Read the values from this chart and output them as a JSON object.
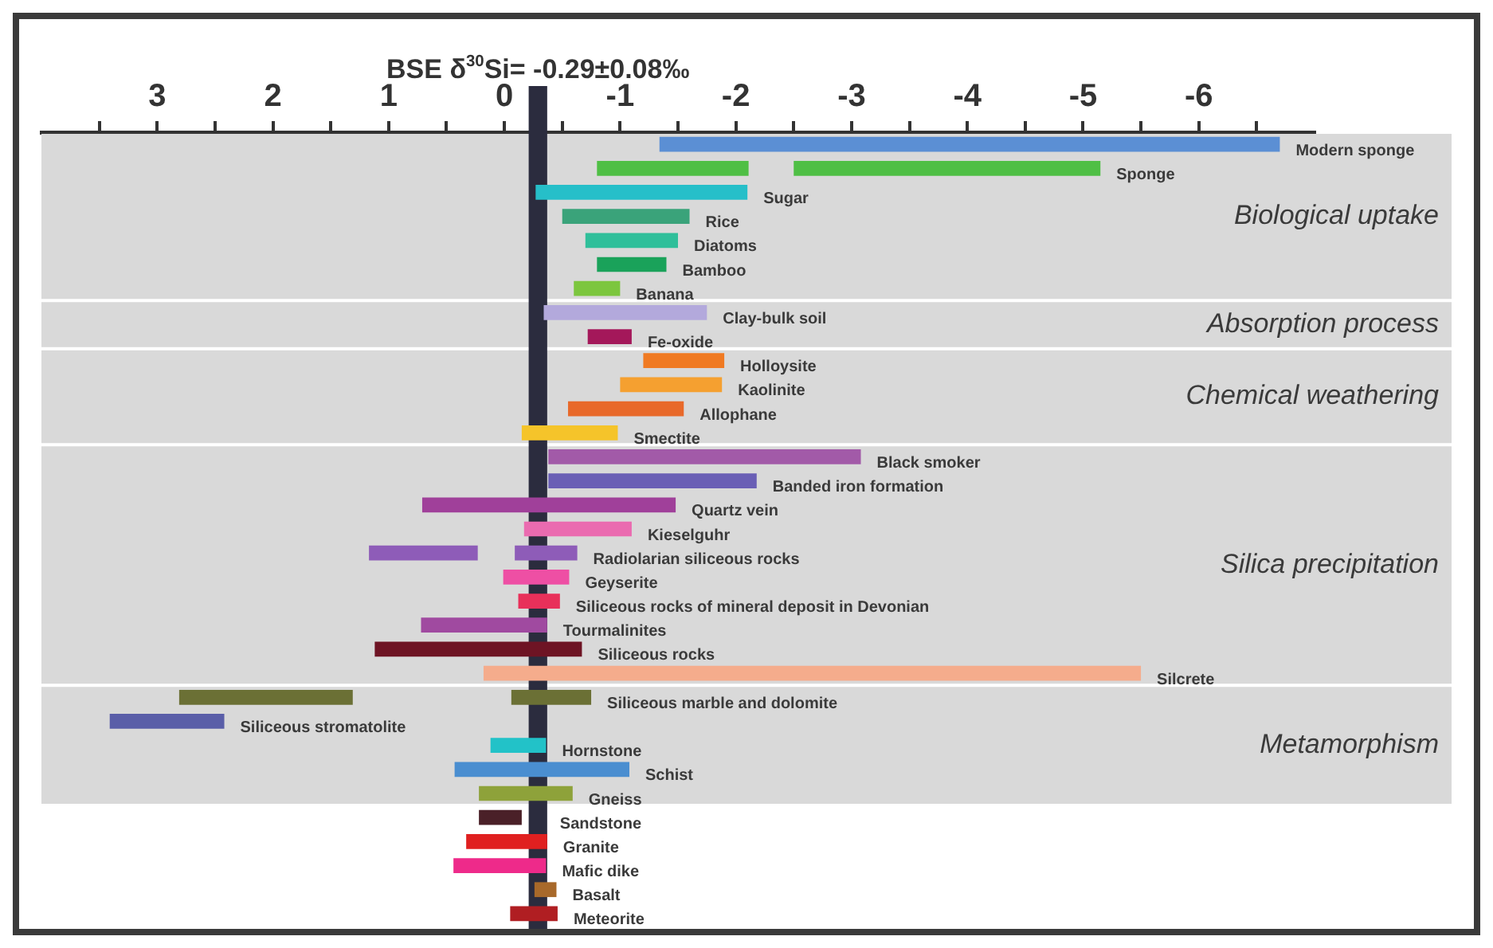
{
  "chart_data": {
    "type": "bar",
    "orientation": "horizontal",
    "tick_labels": "x",
    "grid": false,
    "legend": false,
    "categories": [
      "Modern sponge",
      "Sponge",
      "Sugar",
      "Rice",
      "Diatoms",
      "Bamboo",
      "Banana",
      "Clay-bulk soil",
      "Fe-oxide",
      "Holloysite",
      "Kaolinite",
      "Allophane",
      "Smectite",
      "Black smoker",
      "Banded iron formation",
      "Quartz vein",
      "Kieselguhr",
      "Radiolarian siliceous rocks",
      "Geyserite",
      "Siliceous rocks of mineral deposit in Devonian",
      "Tourmalinites",
      "Siliceous rocks",
      "Silcrete",
      "Siliceous marble and dolomite",
      "Siliceous stromatolite",
      "Hornstone",
      "Schist",
      "Gneiss",
      "Sandstone",
      "Granite",
      "Mafic dike",
      "Basalt",
      "Meteorite"
    ],
    "series": [
      {
        "base": [
          -6.7,
          -2.11,
          -2.1,
          -1.6,
          -1.5,
          -1.4,
          -1.0,
          -1.75,
          -1.1,
          -1.9,
          -1.88,
          -1.55,
          -0.98,
          -3.08,
          -2.18,
          -1.48,
          -1.1,
          0.23,
          -0.56,
          -0.48,
          -0.37,
          -0.67,
          -5.5,
          1.31,
          2.42,
          -0.36,
          -1.08,
          -0.59,
          -0.15,
          -0.37,
          -0.36,
          -0.45,
          -0.46
        ],
        "values": [
          5.36,
          1.31,
          1.83,
          1.1,
          0.8,
          0.6,
          0.4,
          1.41,
          0.38,
          0.7,
          0.88,
          1.0,
          0.83,
          2.7,
          1.8,
          2.19,
          0.93,
          0.94,
          0.57,
          0.36,
          1.09,
          1.79,
          5.68,
          1.5,
          0.99,
          0.48,
          1.51,
          0.81,
          0.37,
          0.7,
          0.8,
          0.19,
          0.41
        ],
        "colors": [
          "#5b8fd4",
          "#4fbf45",
          "#26bfc9",
          "#3aa37a",
          "#2fbf9a",
          "#1aa25a",
          "#7cc63e",
          "#b3a9dc",
          "#a4185a",
          "#f07a22",
          "#f5a030",
          "#e8692a",
          "#f5c42a",
          "#a25aa8",
          "#6a5fb5",
          "#a0409a",
          "#ea6bb0",
          "#8e5cb8",
          "#ee4fa4",
          "#e8305a",
          "#a04aa0",
          "#6e1424",
          "#f5ac8c",
          "#6b7035",
          "#5a5ea8",
          "#22c2c8",
          "#4a8ed0",
          "#8ea23a",
          "#4a2028",
          "#e02020",
          "#ee2a8a",
          "#a8692a",
          "#b01e22"
        ]
      },
      {
        "base": [
          null,
          -5.15,
          null,
          null,
          null,
          null,
          null,
          null,
          null,
          null,
          null,
          null,
          null,
          null,
          null,
          null,
          null,
          -0.63,
          null,
          null,
          null,
          null,
          null,
          -0.75,
          null,
          null,
          null,
          null,
          null,
          null,
          null,
          null,
          null
        ],
        "values": [
          null,
          2.65,
          null,
          null,
          null,
          null,
          null,
          null,
          null,
          null,
          null,
          null,
          null,
          null,
          null,
          null,
          null,
          0.54,
          null,
          null,
          null,
          null,
          null,
          0.69,
          null,
          null,
          null,
          null,
          null,
          null,
          null,
          null,
          null
        ],
        "colors": [
          null,
          "#4fbf45",
          null,
          null,
          null,
          null,
          null,
          null,
          null,
          null,
          null,
          null,
          null,
          null,
          null,
          null,
          null,
          "#8e5cb8",
          null,
          null,
          null,
          null,
          null,
          "#6b7035",
          null,
          null,
          null,
          null,
          null,
          null,
          null,
          null,
          null
        ]
      }
    ],
    "xlim": [
      4,
      -7
    ],
    "xticks": [
      {
        "value": 3.5,
        "label": null
      },
      3,
      {
        "value": 2.5,
        "label": null
      },
      2,
      {
        "value": 1.5,
        "label": null
      },
      1,
      {
        "value": 0.5,
        "label": null
      },
      0,
      {
        "value": -0.5,
        "label": null
      },
      -1,
      {
        "value": -1.5,
        "label": null
      },
      -2,
      {
        "value": -2.5,
        "label": null
      },
      -3,
      {
        "value": -3.5,
        "label": null
      },
      -4,
      {
        "value": -4.5,
        "label": null
      },
      -5,
      {
        "value": -5.5,
        "label": null
      },
      -6,
      {
        "value": -6.5,
        "label": null
      }
    ],
    "bands": [
      {
        "axis": "x",
        "from": -0.21,
        "to": -0.37,
        "label": "BSE δ$^{30}$Si= -0.29±0.08‰",
        "color": "#2b2c3e"
      },
      {
        "axis": "y",
        "from": "Modern sponge",
        "to": "Banana",
        "label": "Biological uptake",
        "color": "#d9d9d9"
      },
      {
        "axis": "y",
        "from": "Clay-bulk soil",
        "to": "Fe-oxide",
        "label": "Absorption process",
        "color": "#d9d9d9"
      },
      {
        "axis": "y",
        "from": "Holloysite",
        "to": "Smectite",
        "label": "Chemical weathering",
        "color": "#d9d9d9"
      },
      {
        "axis": "y",
        "from": "Black smoker",
        "to": "Silcrete",
        "label": "Silica precipitation",
        "color": "#d9d9d9"
      },
      {
        "axis": "y",
        "from": "Siliceous marble and dolomite",
        "to": "Gneiss",
        "label": "Metamorphism",
        "color": "#d9d9d9"
      }
    ]
  }
}
